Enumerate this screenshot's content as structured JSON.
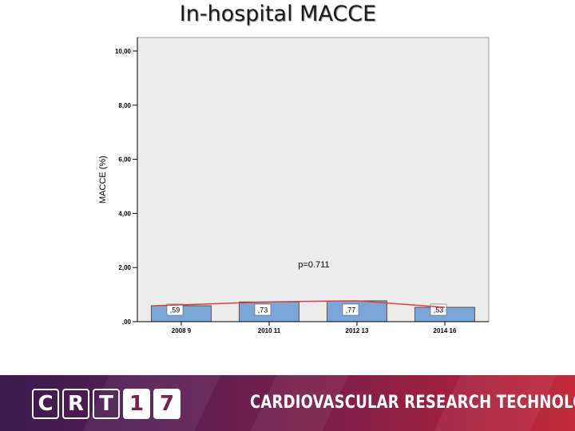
{
  "slide": {
    "title": "In-hospital MACCE"
  },
  "chart_data": {
    "type": "bar",
    "categories": [
      "2008 9",
      "2010 11",
      "2012 13",
      "2014 16"
    ],
    "values": [
      0.59,
      0.73,
      0.77,
      0.53
    ],
    "value_labels": [
      ",59",
      ",73",
      ",77",
      ",53"
    ],
    "line": [
      0.59,
      0.73,
      0.77,
      0.53
    ],
    "ylabel": "MACCE (%)",
    "xlabel": "",
    "ylim": [
      0,
      10.5
    ],
    "yticks": [
      0,
      2,
      4,
      6,
      8,
      10
    ],
    "ytick_labels": [
      ",00",
      "2,00",
      "4,00",
      "6,00",
      "8,00",
      "10,00"
    ],
    "annotation": "p=0.711",
    "grid": false,
    "colors": {
      "bar": "#7aa7d8",
      "line": "#e04040",
      "plot_bg": "#ececec"
    }
  },
  "footer": {
    "logo": [
      "C",
      "R",
      "T",
      "1",
      "7"
    ],
    "tagline": "CARDIOVASCULAR RESEARCH TECHNOLOGIES"
  }
}
